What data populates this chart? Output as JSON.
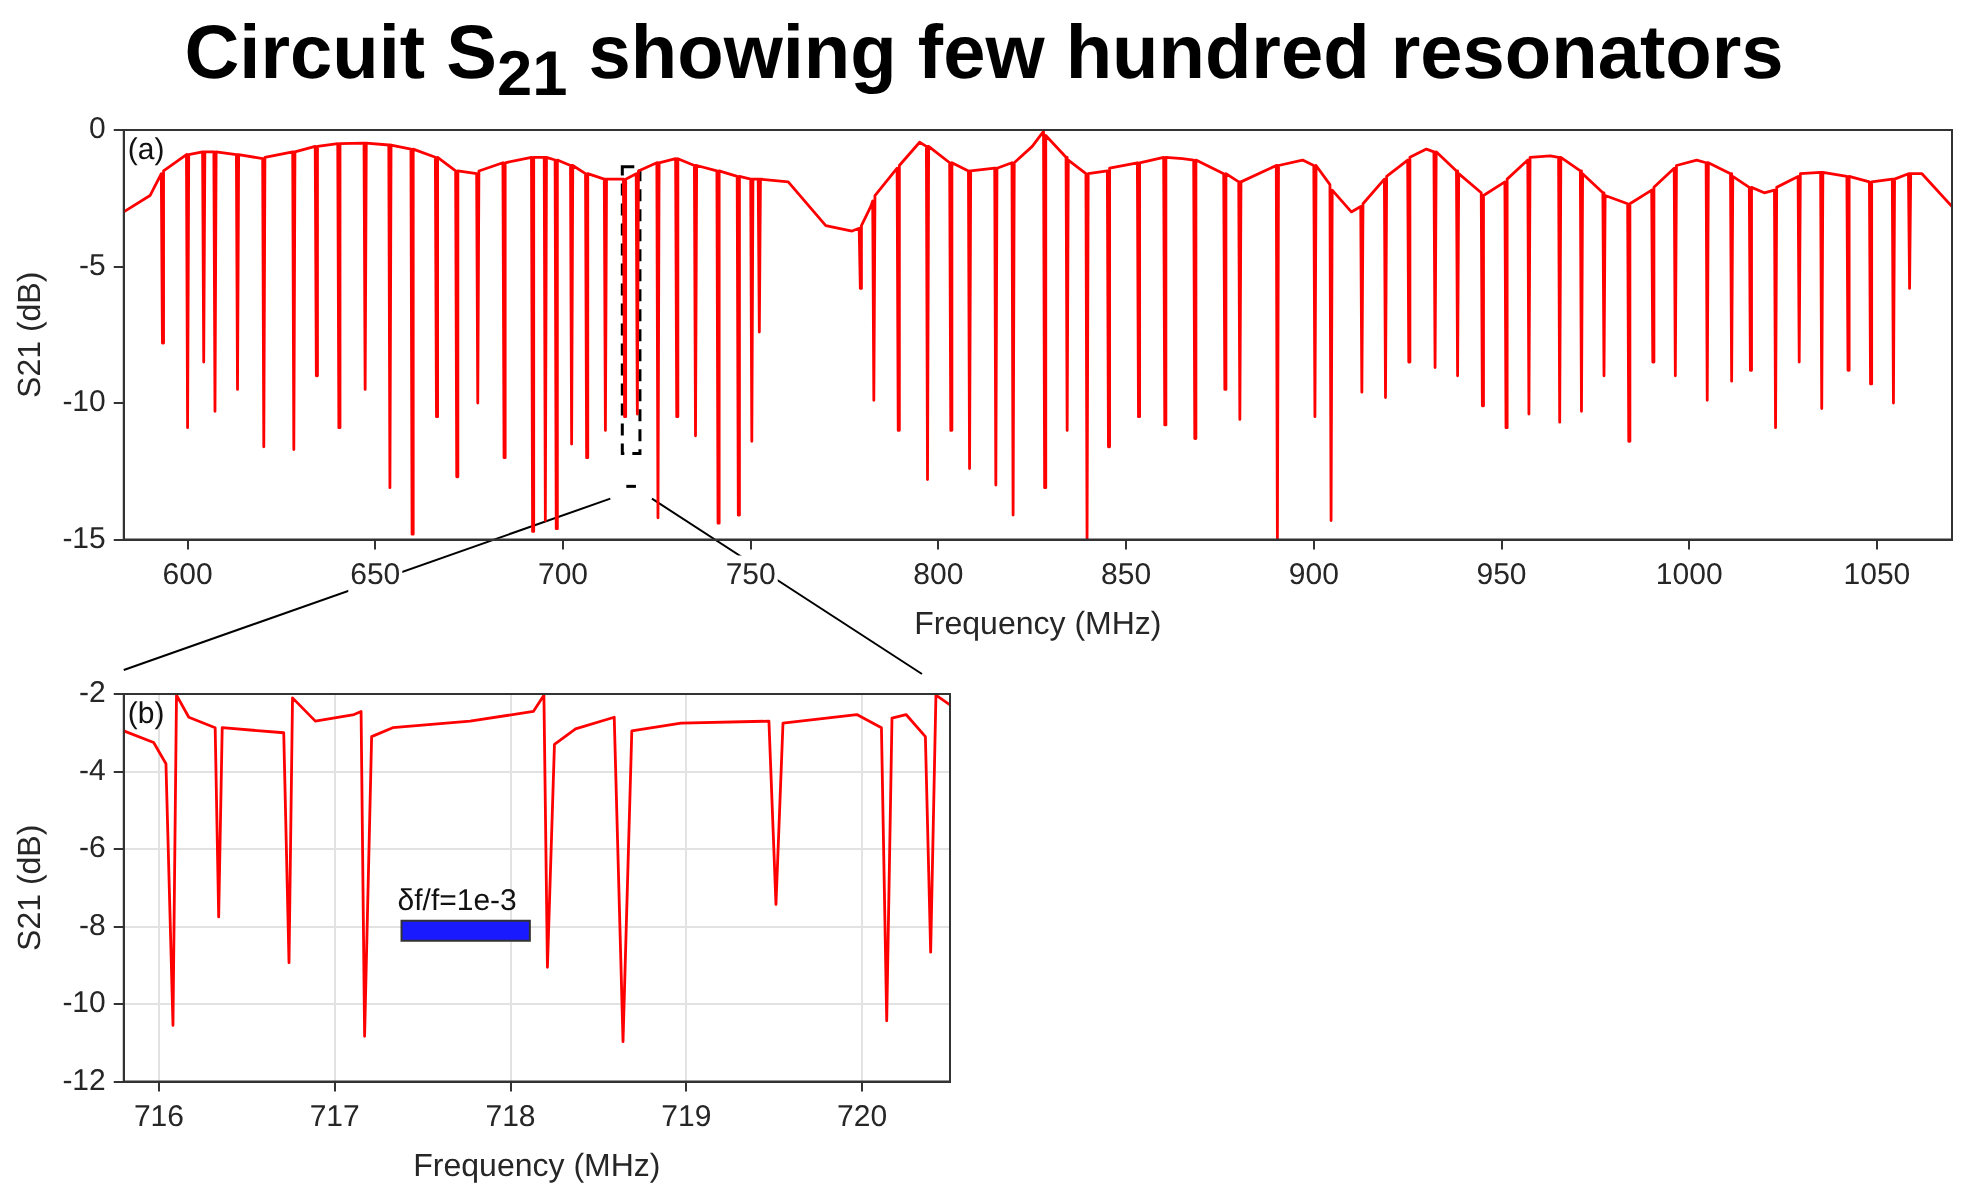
{
  "chart_data": [
    {
      "type": "line",
      "title": "Circuit S$_{21}$ showing few hundred resonators",
      "xlabel": "Frequency (MHz)",
      "ylabel": "S21 (dB)",
      "annotations": [
        "(a)"
      ],
      "xlim": [
        583,
        1070
      ],
      "xticks": [
        600,
        650,
        700,
        750,
        800,
        850,
        900,
        950,
        1000,
        1050
      ],
      "ylim": [
        -15,
        0
      ],
      "yticks": [
        0,
        -5,
        -10,
        -15
      ],
      "grid": false,
      "color": "#ff0000",
      "x": [
        583,
        590,
        593,
        593.3,
        593.6,
        599.7,
        600,
        600.3,
        604,
        604.3,
        604.6,
        607,
        607.3,
        607.6,
        613,
        613.3,
        613.6,
        620,
        620.3,
        620.6,
        628,
        628.3,
        628.6,
        634,
        634.3,
        634.6,
        640,
        640.3,
        640.6,
        647,
        647.3,
        647.6,
        653.6,
        653.9,
        654.2,
        659.5,
        659.8,
        660.1,
        666,
        666.3,
        666.6,
        671.4,
        671.7,
        672,
        677,
        677.3,
        677.6,
        684,
        684.3,
        684.6,
        691.6,
        691.9,
        692.2,
        695,
        695.3,
        695.6,
        697.9,
        698.2,
        698.5,
        702,
        702.3,
        702.6,
        706,
        706.3,
        706.6,
        711,
        711.3,
        711.6,
        716.1,
        716.4,
        716.7,
        719.5,
        719.8,
        720.1,
        725,
        725.3,
        725.6,
        730,
        730.3,
        730.6,
        735,
        735.3,
        735.6,
        741,
        741.3,
        741.6,
        746.4,
        746.7,
        747,
        750,
        750.3,
        750.6,
        752,
        752.3,
        752.6,
        760,
        770,
        777,
        778.9,
        779.2,
        779.5,
        782,
        782.5,
        782.8,
        783.1,
        789,
        789.3,
        789.6,
        795,
        796.8,
        797.1,
        797.4,
        803,
        803.3,
        803.6,
        808,
        808.3,
        808.6,
        815,
        815.3,
        815.6,
        819.6,
        819.9,
        820.2,
        825,
        828,
        828.3,
        828.6,
        834,
        834.3,
        834.6,
        839.3,
        839.6,
        839.9,
        845,
        845.3,
        845.6,
        853,
        853.3,
        853.6,
        860,
        860.3,
        860.6,
        865,
        868,
        868.3,
        868.6,
        876,
        876.3,
        876.6,
        880,
        880.3,
        880.6,
        890,
        890.3,
        890.6,
        897,
        900,
        900.3,
        900.6,
        904.3,
        904.6,
        904.9,
        910,
        912.5,
        912.8,
        913.1,
        918.8,
        919.1,
        919.4,
        925,
        925.3,
        925.6,
        930,
        932,
        932.3,
        932.6,
        938,
        938.3,
        938.6,
        944.6,
        944.9,
        945.2,
        950.9,
        951.2,
        951.5,
        957,
        957.3,
        957.6,
        963,
        965.2,
        965.5,
        965.8,
        971,
        971.3,
        971.6,
        977,
        977.3,
        977.6,
        983.6,
        983.9,
        984.2,
        990,
        990.3,
        990.6,
        996,
        996.3,
        996.6,
        1002,
        1004.5,
        1004.8,
        1005.1,
        1011,
        1011.3,
        1011.6,
        1016,
        1016.3,
        1016.6,
        1020,
        1022.7,
        1023,
        1023.3,
        1029,
        1029.3,
        1029.6,
        1035,
        1035.3,
        1035.6,
        1042,
        1042.3,
        1042.6,
        1048,
        1048.3,
        1048.6,
        1054.1,
        1054.4,
        1054.7,
        1058.4,
        1058.7,
        1059,
        1062,
        1070
      ],
      "values": [
        -3.0,
        -2.4,
        -1.6,
        -7.8,
        -1.5,
        -0.9,
        -10.9,
        -0.9,
        -0.8,
        -8.5,
        -0.8,
        -0.8,
        -10.3,
        -0.8,
        -0.9,
        -9.5,
        -0.9,
        -1.05,
        -11.6,
        -1.0,
        -0.8,
        -11.7,
        -0.8,
        -0.6,
        -9.0,
        -0.6,
        -0.5,
        -10.9,
        -0.5,
        -0.48,
        -9.5,
        -0.48,
        -0.55,
        -13.1,
        -0.55,
        -0.7,
        -14.8,
        -0.7,
        -1.0,
        -10.5,
        -1.0,
        -1.5,
        -12.7,
        -1.5,
        -1.6,
        -10.0,
        -1.5,
        -1.2,
        -12.0,
        -1.2,
        -1.0,
        -14.7,
        -1.0,
        -1.0,
        -14.3,
        -1.0,
        -1.1,
        -14.6,
        -1.1,
        -1.3,
        -11.5,
        -1.3,
        -1.6,
        -12.0,
        -1.6,
        -1.8,
        -11.0,
        -1.8,
        -1.8,
        -10.5,
        -1.8,
        -1.6,
        -10.4,
        -1.5,
        -1.2,
        -14.2,
        -1.2,
        -1.05,
        -10.5,
        -1.05,
        -1.3,
        -11.2,
        -1.3,
        -1.5,
        -14.4,
        -1.5,
        -1.7,
        -14.1,
        -1.7,
        -1.8,
        -11.4,
        -1.8,
        -1.8,
        -7.4,
        -1.8,
        -1.9,
        -3.5,
        -3.7,
        -3.6,
        -5.8,
        -3.5,
        -2.8,
        -2.6,
        -9.9,
        -2.4,
        -1.4,
        -11.0,
        -1.3,
        -0.45,
        -0.6,
        -12.8,
        -0.6,
        -1.2,
        -11.0,
        -1.2,
        -1.5,
        -12.4,
        -1.5,
        -1.4,
        -13.0,
        -1.4,
        -1.2,
        -14.1,
        -1.2,
        -0.6,
        -0.05,
        -13.1,
        -0.2,
        -1.0,
        -11.0,
        -1.1,
        -1.6,
        -15,
        -1.6,
        -1.5,
        -11.6,
        -1.4,
        -1.2,
        -10.5,
        -1.2,
        -1.0,
        -10.8,
        -1.0,
        -1.05,
        -1.1,
        -11.3,
        -1.1,
        -1.6,
        -9.5,
        -1.6,
        -1.9,
        -10.6,
        -1.9,
        -1.3,
        -15,
        -1.3,
        -1.1,
        -1.3,
        -10.5,
        -1.3,
        -2.0,
        -14.3,
        -2.2,
        -3.0,
        -2.8,
        -9.6,
        -2.7,
        -1.8,
        -9.8,
        -1.7,
        -1.1,
        -8.5,
        -1.0,
        -0.7,
        -0.8,
        -8.7,
        -0.8,
        -1.5,
        -9.0,
        -1.6,
        -2.3,
        -10.1,
        -2.4,
        -1.9,
        -10.9,
        -1.8,
        -1.1,
        -10.4,
        -1.0,
        -0.95,
        -1.0,
        -10.7,
        -1.0,
        -1.5,
        -10.3,
        -1.6,
        -2.3,
        -9.0,
        -2.4,
        -2.7,
        -11.4,
        -2.7,
        -2.2,
        -8.5,
        -2.1,
        -1.4,
        -9.0,
        -1.3,
        -1.1,
        -1.2,
        -9.9,
        -1.2,
        -1.6,
        -9.2,
        -1.7,
        -2.1,
        -8.8,
        -2.1,
        -2.3,
        -2.2,
        -10.9,
        -2.1,
        -1.7,
        -8.5,
        -1.6,
        -1.55,
        -10.2,
        -1.55,
        -1.7,
        -8.8,
        -1.7,
        -1.9,
        -9.3,
        -1.9,
        -1.8,
        -10.0,
        -1.8,
        -1.6,
        -5.8,
        -1.6,
        -1.6,
        -2.8
      ]
    },
    {
      "type": "line",
      "xlabel": "Frequency (MHz)",
      "ylabel": "S21 (dB)",
      "annotations": [
        "(b)"
      ],
      "bands": [
        {
          "axis": "x",
          "from": 717.38,
          "to": 718.11,
          "label": "δf/f=1e-3",
          "color": "#1a1aff"
        }
      ],
      "xlim": [
        715.8,
        720.5
      ],
      "xticks": [
        716,
        717,
        718,
        719,
        720
      ],
      "ylim": [
        -12,
        -2
      ],
      "yticks": [
        -2,
        -4,
        -6,
        -8,
        -10,
        -12
      ],
      "grid": true,
      "color": "#ff0000",
      "x": [
        715.8,
        715.97,
        716.04,
        716.08,
        716.1,
        716.17,
        716.32,
        716.34,
        716.36,
        716.71,
        716.74,
        716.76,
        716.89,
        717.11,
        717.15,
        717.17,
        717.21,
        717.33,
        717.77,
        718.13,
        718.19,
        718.21,
        718.25,
        718.37,
        718.59,
        718.64,
        718.69,
        718.97,
        719.47,
        719.51,
        719.55,
        719.97,
        720.11,
        720.14,
        720.17,
        720.25,
        720.36,
        720.39,
        720.42,
        720.5
      ],
      "values": [
        -2.95,
        -3.25,
        -3.8,
        -10.55,
        -2.03,
        -2.6,
        -2.87,
        -7.75,
        -2.87,
        -3.0,
        -8.93,
        -2.1,
        -2.7,
        -2.53,
        -2.45,
        -10.83,
        -3.1,
        -2.87,
        -2.7,
        -2.45,
        -2.03,
        -9.05,
        -3.3,
        -2.9,
        -2.6,
        -10.97,
        -2.95,
        -2.75,
        -2.7,
        -7.43,
        -2.75,
        -2.53,
        -2.87,
        -10.43,
        -2.62,
        -2.53,
        -3.1,
        -8.66,
        -2.03,
        -2.28
      ]
    }
  ]
}
